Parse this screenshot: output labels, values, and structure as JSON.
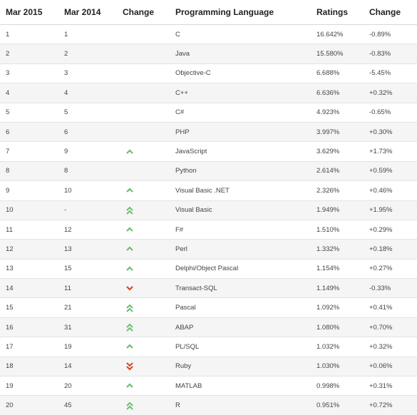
{
  "columns": [
    "Mar 2015",
    "Mar 2014",
    "Change",
    "Programming Language",
    "Ratings",
    "Change"
  ],
  "colors": {
    "up": "#6cbf6c",
    "down": "#d9441c"
  },
  "rows": [
    {
      "cur": "1",
      "prev": "1",
      "trend": "none",
      "language": "C",
      "rating": "16.642%",
      "diff": "-0.89%"
    },
    {
      "cur": "2",
      "prev": "2",
      "trend": "none",
      "language": "Java",
      "rating": "15.580%",
      "diff": "-0.83%"
    },
    {
      "cur": "3",
      "prev": "3",
      "trend": "none",
      "language": "Objective-C",
      "rating": "6.688%",
      "diff": "-5.45%"
    },
    {
      "cur": "4",
      "prev": "4",
      "trend": "none",
      "language": "C++",
      "rating": "6.636%",
      "diff": "+0.32%"
    },
    {
      "cur": "5",
      "prev": "5",
      "trend": "none",
      "language": "C#",
      "rating": "4.923%",
      "diff": "-0.65%"
    },
    {
      "cur": "6",
      "prev": "6",
      "trend": "none",
      "language": "PHP",
      "rating": "3.997%",
      "diff": "+0.30%"
    },
    {
      "cur": "7",
      "prev": "9",
      "trend": "up-icon",
      "language": "JavaScript",
      "rating": "3.629%",
      "diff": "+1.73%"
    },
    {
      "cur": "8",
      "prev": "8",
      "trend": "none",
      "language": "Python",
      "rating": "2.614%",
      "diff": "+0.59%"
    },
    {
      "cur": "9",
      "prev": "10",
      "trend": "up-icon",
      "language": "Visual Basic .NET",
      "rating": "2.326%",
      "diff": "+0.46%"
    },
    {
      "cur": "10",
      "prev": "-",
      "trend": "double-up-icon",
      "language": "Visual Basic",
      "rating": "1.949%",
      "diff": "+1.95%"
    },
    {
      "cur": "11",
      "prev": "12",
      "trend": "up-icon",
      "language": "F#",
      "rating": "1.510%",
      "diff": "+0.29%"
    },
    {
      "cur": "12",
      "prev": "13",
      "trend": "up-icon",
      "language": "Perl",
      "rating": "1.332%",
      "diff": "+0.18%"
    },
    {
      "cur": "13",
      "prev": "15",
      "trend": "up-icon",
      "language": "Delphi/Object Pascal",
      "rating": "1.154%",
      "diff": "+0.27%"
    },
    {
      "cur": "14",
      "prev": "11",
      "trend": "down-icon",
      "language": "Transact-SQL",
      "rating": "1.149%",
      "diff": "-0.33%"
    },
    {
      "cur": "15",
      "prev": "21",
      "trend": "double-up-icon",
      "language": "Pascal",
      "rating": "1.092%",
      "diff": "+0.41%"
    },
    {
      "cur": "16",
      "prev": "31",
      "trend": "double-up-icon",
      "language": "ABAP",
      "rating": "1.080%",
      "diff": "+0.70%"
    },
    {
      "cur": "17",
      "prev": "19",
      "trend": "up-icon",
      "language": "PL/SQL",
      "rating": "1.032%",
      "diff": "+0.32%"
    },
    {
      "cur": "18",
      "prev": "14",
      "trend": "double-down-icon",
      "language": "Ruby",
      "rating": "1.030%",
      "diff": "+0.06%"
    },
    {
      "cur": "19",
      "prev": "20",
      "trend": "up-icon",
      "language": "MATLAB",
      "rating": "0.998%",
      "diff": "+0.31%"
    },
    {
      "cur": "20",
      "prev": "45",
      "trend": "double-up-icon",
      "language": "R",
      "rating": "0.951%",
      "diff": "+0.72%"
    }
  ]
}
